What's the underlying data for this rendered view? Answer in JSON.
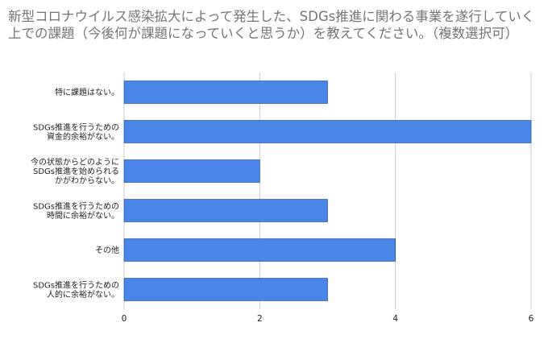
{
  "chart_data": {
    "type": "bar",
    "orientation": "horizontal",
    "title": "新型コロナウイルス感染拡大によって発生した、SDGs推進に関わる事業を遂行していく上での課題（今後何が課題になっていくと思うか）を教えてください。（複数選択可）",
    "categories": [
      "特に課題はない。",
      "SDGs推進を行うための\n資金的余裕がない。",
      "今の状態からどのように\nSDGs推進を始められる\nかがわからない。",
      "SDGs推進を行うための\n時間に余裕がない。",
      "その他",
      "SDGs推進を行うための\n人的に余裕がない。"
    ],
    "series": [
      {
        "values": [
          3,
          6,
          2,
          3,
          4,
          3
        ]
      }
    ],
    "xlim": [
      0,
      6
    ],
    "xticks": [
      0,
      2,
      4,
      6
    ],
    "grid": true,
    "legend": "none",
    "bar_color": "#4a86e8",
    "gridline_color": "#cccccc",
    "axis_text_color": "#222222",
    "title_color": "#757575"
  }
}
